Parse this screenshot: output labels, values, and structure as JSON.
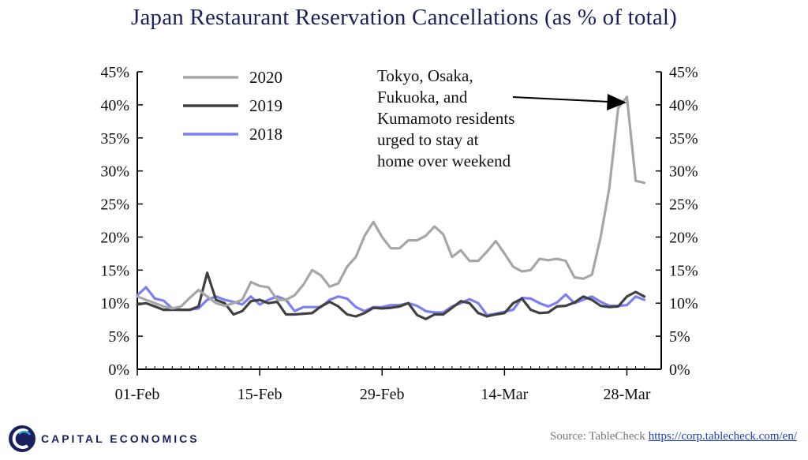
{
  "chart_data": {
    "type": "line",
    "title": "Japan Restaurant Reservation Cancellations (as % of total)",
    "xlabel": "",
    "ylabel": "",
    "x_tick_labels": [
      "01-Feb",
      "15-Feb",
      "29-Feb",
      "14-Mar",
      "28-Mar"
    ],
    "x_tick_day_index": [
      0,
      14,
      28,
      42,
      56
    ],
    "y_tick_labels": [
      "0%",
      "5%",
      "10%",
      "15%",
      "20%",
      "25%",
      "30%",
      "35%",
      "40%",
      "45%"
    ],
    "ylim": [
      0,
      45
    ],
    "grid": false,
    "legend_position": "top-left",
    "annotation": "Tokyo, Osaka, Fukuoka, and Kumamoto residents urged to stay at home over weekend",
    "annotation_lines": [
      "Tokyo,  Osaka,",
      "Fukuoka,  and",
      "Kumamoto residents",
      "urged to stay at",
      "home over weekend"
    ],
    "series": [
      {
        "name": "2020",
        "color": "#a6a6a6",
        "values": [
          11.0,
          10.5,
          10.0,
          9.5,
          9.2,
          9.5,
          10.8,
          12.0,
          11.0,
          10.0,
          9.6,
          10.0,
          10.5,
          13.2,
          12.6,
          12.4,
          10.5,
          10.5,
          11.2,
          12.8,
          15.0,
          14.2,
          12.5,
          13.0,
          15.5,
          17.0,
          20.2,
          22.3,
          20.0,
          18.3,
          18.3,
          19.5,
          19.5,
          20.2,
          21.6,
          20.4,
          17.0,
          18.0,
          16.4,
          16.4,
          17.8,
          19.4,
          17.5,
          15.5,
          14.8,
          15.0,
          16.7,
          16.5,
          16.7,
          16.4,
          13.9,
          13.7,
          14.3,
          20.0,
          27.5,
          39.5,
          41.2,
          28.5,
          28.2
        ]
      },
      {
        "name": "2019",
        "color": "#404040",
        "values": [
          9.8,
          10.0,
          9.5,
          9.0,
          9.0,
          9.0,
          9.0,
          9.5,
          14.6,
          10.5,
          10.0,
          8.3,
          8.8,
          10.3,
          10.5,
          10.0,
          10.2,
          8.3,
          8.3,
          8.4,
          8.5,
          9.5,
          10.2,
          9.5,
          8.3,
          8.0,
          8.5,
          9.3,
          9.2,
          9.3,
          9.5,
          10.0,
          8.2,
          7.6,
          8.3,
          8.3,
          9.3,
          10.3,
          10.0,
          8.5,
          8.0,
          8.3,
          8.5,
          10.0,
          10.7,
          9.0,
          8.5,
          8.6,
          9.5,
          9.6,
          10.1,
          11.0,
          10.5,
          9.6,
          9.4,
          9.5,
          11.0,
          11.7,
          11.0
        ]
      },
      {
        "name": "2018",
        "color": "#7b7ff0",
        "values": [
          11.2,
          12.4,
          10.7,
          10.4,
          9.2,
          9.0,
          9.0,
          9.2,
          10.5,
          11.0,
          10.5,
          10.2,
          9.8,
          11.0,
          9.8,
          10.5,
          11.0,
          10.5,
          8.8,
          9.4,
          9.4,
          9.4,
          10.5,
          11.0,
          10.7,
          9.4,
          8.8,
          9.4,
          9.4,
          9.7,
          9.7,
          10.0,
          9.6,
          8.8,
          8.6,
          8.6,
          9.5,
          10.0,
          10.6,
          10.0,
          8.2,
          8.4,
          8.7,
          9.0,
          10.8,
          10.7,
          10.0,
          9.5,
          10.1,
          11.3,
          10.0,
          10.5,
          11.0,
          10.2,
          9.6,
          9.6,
          9.7,
          11.0,
          10.5
        ]
      }
    ]
  },
  "branding": {
    "logo_text": "CAPITAL ECONOMICS",
    "source_label": "Source: TableCheck",
    "source_url": "https://corp.tablecheck.com/en/"
  }
}
